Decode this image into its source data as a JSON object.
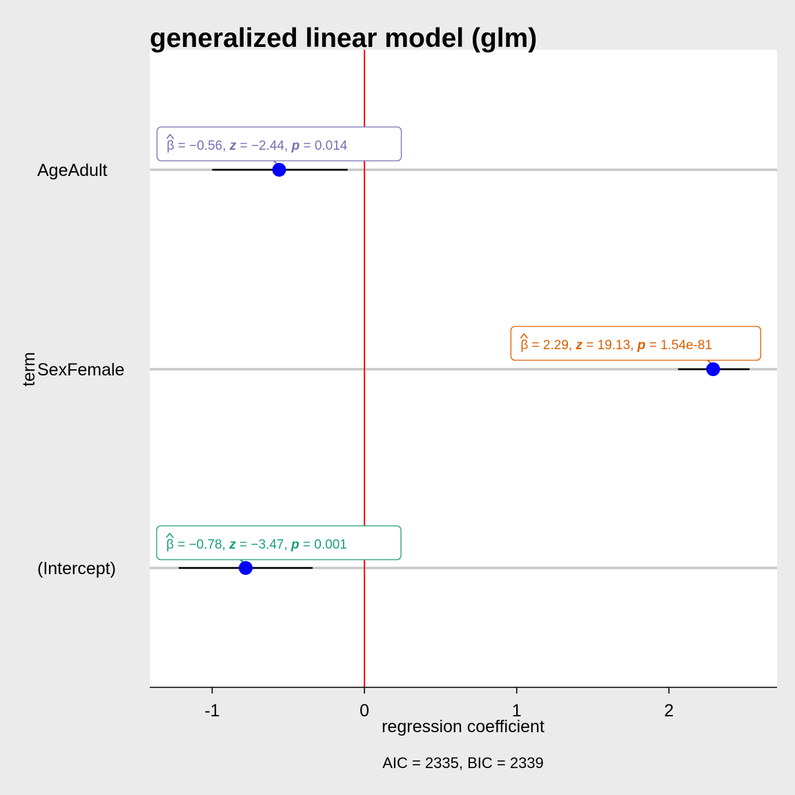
{
  "chart_data": {
    "type": "scatter",
    "title": "generalized linear model (glm)",
    "xlabel": "regression coefficient",
    "ylabel": "term",
    "caption": "AIC = 2335, BIC = 2339",
    "xlim": [
      -1.41,
      2.71
    ],
    "xticks": [
      "-1",
      "0",
      "1",
      "2"
    ],
    "reference_line": {
      "x": 0,
      "color": "#FF0000"
    },
    "point_color": "#0000FF",
    "grid": "horizontal major lines only",
    "terms": [
      {
        "term": "AgeAdult",
        "estimate": -0.56,
        "conf_low": -1.0,
        "conf_high": -0.11,
        "label": {
          "beta": "−0.56",
          "stat_name": "z",
          "stat": "−2.44",
          "p": "0.014"
        },
        "label_color": "#7570B3"
      },
      {
        "term": "SexFemale",
        "estimate": 2.29,
        "conf_low": 2.06,
        "conf_high": 2.53,
        "label": {
          "beta": "2.29",
          "stat_name": "z",
          "stat": "19.13",
          "p": "1.54e-81"
        },
        "label_color": "#D95F02"
      },
      {
        "term": "(Intercept)",
        "estimate": -0.78,
        "conf_low": -1.22,
        "conf_high": -0.34,
        "label": {
          "beta": "−0.78",
          "stat_name": "z",
          "stat": "−3.47",
          "p": "0.001"
        },
        "label_color": "#1B9E77"
      }
    ]
  }
}
